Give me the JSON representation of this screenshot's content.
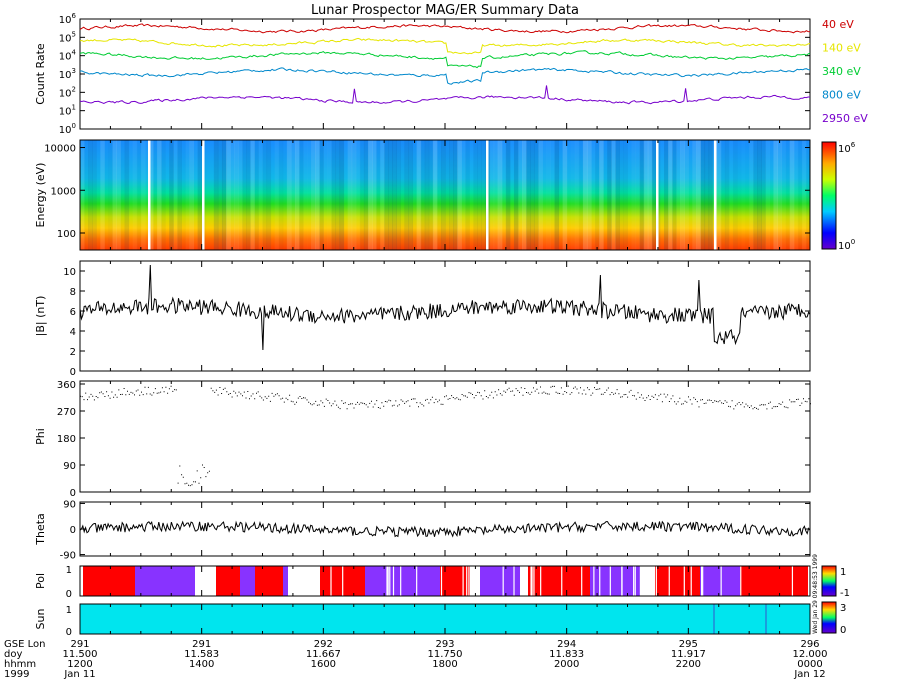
{
  "title": "Lunar Prospector MAG/ER Summary Data",
  "stamp": "Wed Jan 29 09:48:53 1999",
  "colors": {
    "40eV": "#cc0000",
    "140eV": "#e6e600",
    "340eV": "#00cc33",
    "800eV": "#0088cc",
    "2950eV": "#7700cc",
    "pol_pos": "#ff0000",
    "pol_neg": "#8833ff",
    "sun": "#00e5ee"
  },
  "chart_data": [
    {
      "id": "count_rate",
      "type": "line",
      "ylabel": "Count Rate",
      "yscale": "log",
      "ylim": [
        1,
        1000000
      ],
      "yticks": [
        {
          "base": "10",
          "exp": "6",
          "v": 1000000
        },
        {
          "base": "10",
          "exp": "5",
          "v": 100000
        },
        {
          "base": "10",
          "exp": "4",
          "v": 10000
        },
        {
          "base": "10",
          "exp": "3",
          "v": 1000
        },
        {
          "base": "10",
          "exp": "2",
          "v": 100
        },
        {
          "base": "10",
          "exp": "1",
          "v": 10
        },
        {
          "base": "10",
          "exp": "0",
          "v": 1
        }
      ],
      "series": [
        {
          "name": "40 eV",
          "color": "#cc0000",
          "level": 300000
        },
        {
          "name": "140 eV",
          "color": "#e6e600",
          "level": 50000
        },
        {
          "name": "340 eV",
          "color": "#00cc33",
          "level": 10000
        },
        {
          "name": "800 eV",
          "color": "#0088cc",
          "level": 1200
        },
        {
          "name": "2950 eV",
          "color": "#7700cc",
          "level": 40
        }
      ]
    },
    {
      "id": "energy",
      "type": "heatmap",
      "ylabel": "Energy (eV)",
      "yscale": "log",
      "ylim": [
        40,
        15000
      ],
      "yticks": [
        "10000",
        "1000",
        "100"
      ],
      "colorbar": {
        "max_base": "10",
        "max_exp": "6",
        "min_base": "10",
        "min_exp": "0"
      }
    },
    {
      "id": "bmag",
      "type": "line",
      "ylabel": "|B| (nT)",
      "ylim": [
        0,
        11
      ],
      "yticks": [
        "10",
        "8",
        "6",
        "4",
        "2",
        "0"
      ],
      "mean": 6
    },
    {
      "id": "phi",
      "type": "scatter",
      "ylabel": "Phi",
      "ylim": [
        0,
        370
      ],
      "yticks": [
        "360",
        "270",
        "180",
        "90",
        "0"
      ]
    },
    {
      "id": "theta",
      "type": "line",
      "ylabel": "Theta",
      "ylim": [
        -95,
        95
      ],
      "yticks": [
        "90",
        "0",
        "-90"
      ]
    },
    {
      "id": "pol",
      "type": "heatmap",
      "ylabel": "Pol",
      "ylim": [
        0,
        1
      ],
      "yticks": [
        "1",
        "0"
      ],
      "colorbar": {
        "max": "1",
        "min": "-1"
      }
    },
    {
      "id": "sun",
      "type": "heatmap",
      "ylabel": "Sun",
      "ylim": [
        0,
        1
      ],
      "yticks": [
        "1",
        "0"
      ],
      "colorbar": {
        "max": "3",
        "min": "0"
      }
    }
  ],
  "xaxis": {
    "row_labels": [
      "GSE Lon",
      "doy",
      "hhmm",
      "1999"
    ],
    "ticks": [
      {
        "lon": "291",
        "doy": "11.500",
        "hhmm": "1200",
        "date": "Jan 11"
      },
      {
        "lon": "291",
        "doy": "11.583",
        "hhmm": "1400",
        "date": ""
      },
      {
        "lon": "292",
        "doy": "11.667",
        "hhmm": "1600",
        "date": ""
      },
      {
        "lon": "293",
        "doy": "11.750",
        "hhmm": "1800",
        "date": ""
      },
      {
        "lon": "294",
        "doy": "11.833",
        "hhmm": "2000",
        "date": ""
      },
      {
        "lon": "295",
        "doy": "11.917",
        "hhmm": "2200",
        "date": ""
      },
      {
        "lon": "296",
        "doy": "12.000",
        "hhmm": "0000",
        "date": "Jan 12"
      }
    ]
  }
}
